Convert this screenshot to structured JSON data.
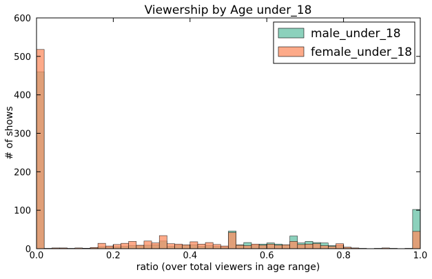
{
  "chart_data": {
    "type": "bar",
    "title": "Viewership by Age under_18",
    "xlabel": "ratio (over total viewers in age range)",
    "ylabel": "# of shows",
    "xlim": [
      0.0,
      1.0
    ],
    "ylim": [
      0,
      600
    ],
    "xticks": [
      "0.0",
      "0.2",
      "0.4",
      "0.6",
      "0.8",
      "1.0"
    ],
    "yticks": [
      "0",
      "100",
      "200",
      "300",
      "400",
      "500",
      "600"
    ],
    "bins": 50,
    "bin_width": 0.02,
    "grid": false,
    "legend_position": "top-right",
    "series": [
      {
        "name": "male_under_18",
        "color": "#66c2a5",
        "values": [
          460,
          0,
          1,
          1,
          0,
          0,
          1,
          2,
          5,
          4,
          5,
          6,
          8,
          8,
          9,
          10,
          20,
          6,
          8,
          9,
          10,
          6,
          8,
          6,
          4,
          46,
          10,
          16,
          9,
          12,
          15,
          12,
          10,
          33,
          15,
          19,
          16,
          15,
          8,
          9,
          3,
          1,
          0,
          0,
          0,
          0,
          0,
          0,
          0,
          102
        ]
      },
      {
        "name": "female_under_18",
        "color": "#fc8d62",
        "values": [
          518,
          1,
          2,
          2,
          1,
          2,
          1,
          3,
          14,
          7,
          11,
          14,
          19,
          9,
          20,
          15,
          34,
          13,
          12,
          10,
          18,
          12,
          16,
          11,
          7,
          42,
          9,
          8,
          12,
          9,
          12,
          9,
          10,
          19,
          11,
          12,
          13,
          8,
          6,
          13,
          4,
          2,
          1,
          0,
          1,
          2,
          1,
          0,
          1,
          45
        ]
      }
    ]
  }
}
